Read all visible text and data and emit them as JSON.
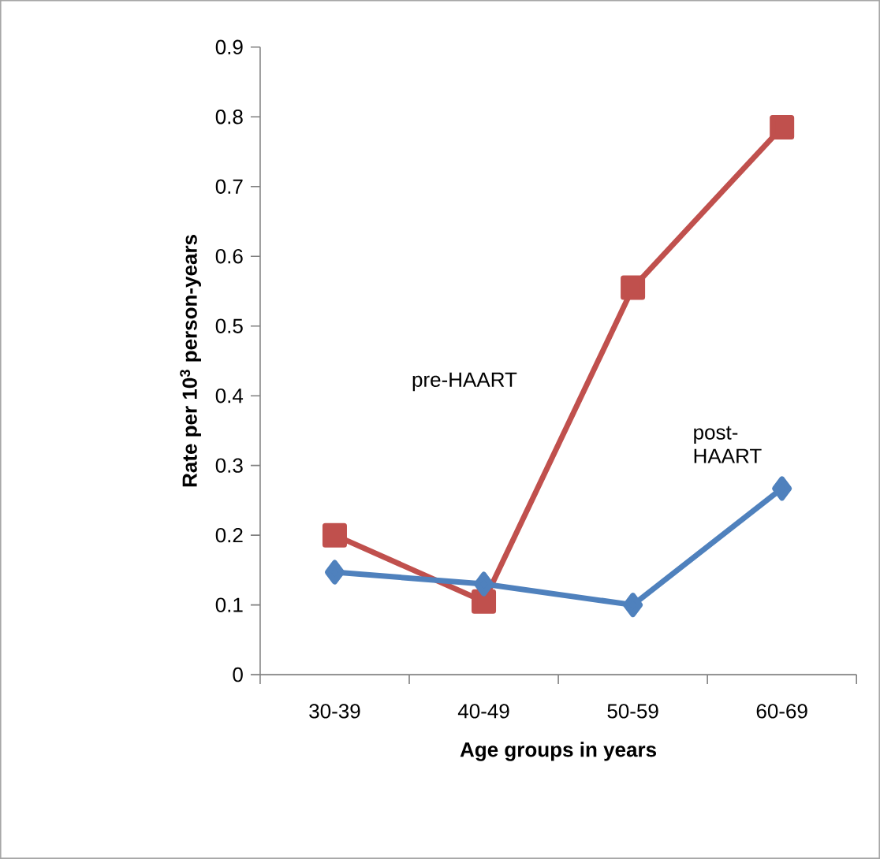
{
  "chart_data": {
    "type": "line",
    "xlabel": "Age groups in years",
    "ylabel": "Rate per 10$^{3}$ person-years",
    "categories": [
      "30-39",
      "40-49",
      "50-59",
      "60-69"
    ],
    "series": [
      {
        "name": "pre-HAART",
        "color": "#c0504d",
        "marker": "square",
        "values": [
          0.2,
          0.105,
          0.555,
          0.785
        ]
      },
      {
        "name": "post-HAART",
        "color": "#4f81bd",
        "marker": "diamond",
        "values": [
          0.147,
          0.13,
          0.1,
          0.267
        ]
      }
    ],
    "ylim": [
      0,
      0.9
    ],
    "yticks": [
      0,
      0.1,
      0.2,
      0.3,
      0.4,
      0.5,
      0.6,
      0.7,
      0.8,
      0.9
    ]
  }
}
